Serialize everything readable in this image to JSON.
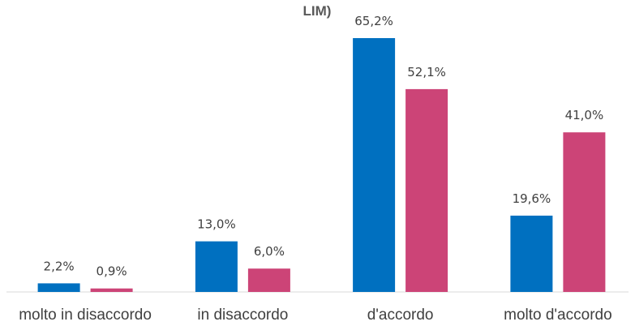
{
  "chart_data": {
    "type": "bar",
    "title": "LIM)",
    "categories": [
      "molto in disaccordo",
      "in disaccordo",
      "d'accordo",
      "molto d'accordo"
    ],
    "series": [
      {
        "values": [
          2.2,
          13.0,
          65.2,
          19.6
        ],
        "labels": [
          "2,2%",
          "13,0%",
          "65,2%",
          "19,6%"
        ],
        "color": "#0070c0"
      },
      {
        "values": [
          0.9,
          6.0,
          52.1,
          41.0
        ],
        "labels": [
          "0,9%",
          "6,0%",
          "52,1%",
          "41,0%"
        ],
        "color": "#cc4477"
      }
    ],
    "ylim": [
      0,
      65.2
    ],
    "grid": false,
    "legend": "none",
    "axis_color": "#d9d9d9"
  }
}
